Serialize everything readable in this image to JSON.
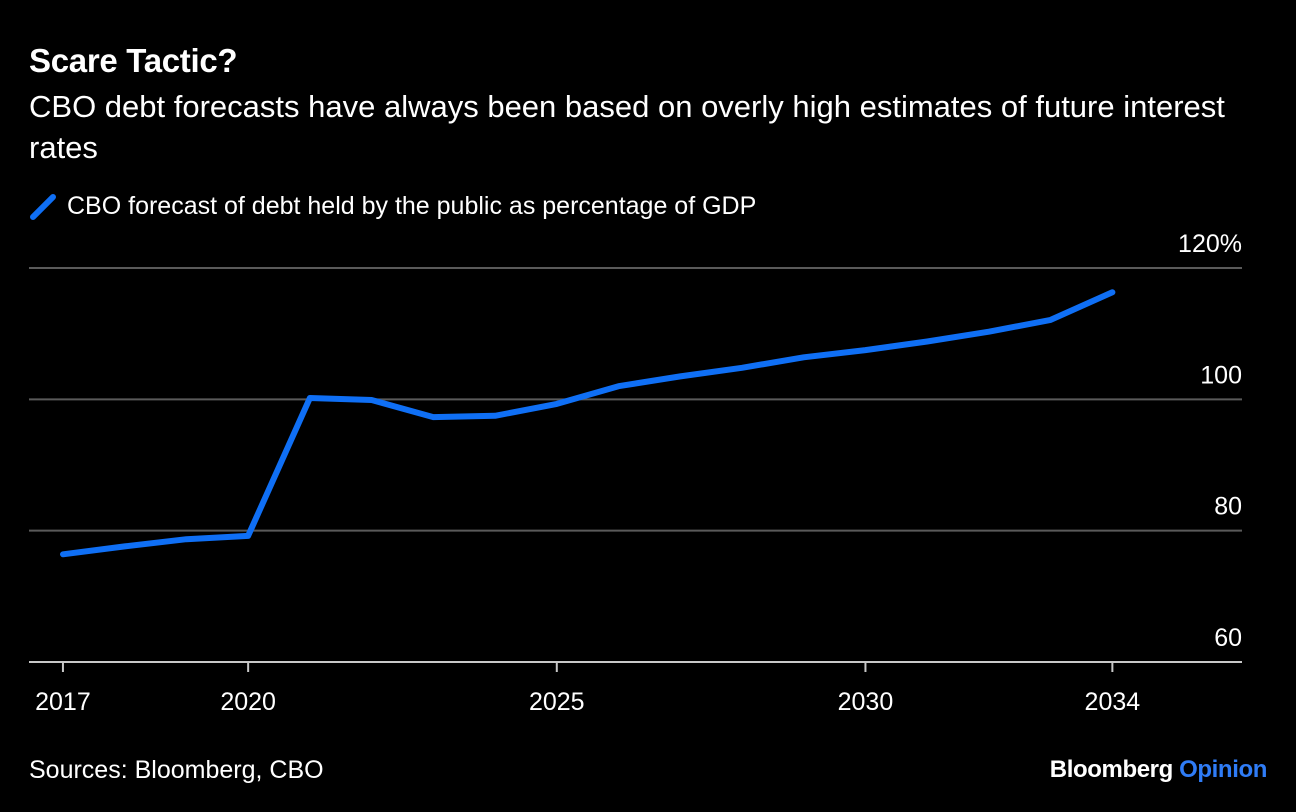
{
  "header": {
    "title": "Scare Tactic?",
    "subtitle": "CBO debt forecasts have always been based on overly high estimates of future interest rates"
  },
  "footer": {
    "source": "Sources: Bloomberg, CBO",
    "brand_main": "Bloomberg",
    "brand_accent": "Opinion"
  },
  "colors": {
    "background": "#000000",
    "series": "#0f6ff5",
    "grid": "#5a5a5a",
    "axis": "#c8c8c8",
    "text": "#ffffff",
    "brand_accent": "#2f7cf6"
  },
  "chart_data": {
    "type": "line",
    "title": "Scare Tactic?",
    "subtitle": "CBO debt forecasts have always been based on overly high estimates of future interest rates",
    "xlabel": "",
    "ylabel": "",
    "xlim": [
      2016.45,
      2036.1
    ],
    "ylim": [
      60,
      120
    ],
    "x_ticks": [
      2017,
      2020,
      2025,
      2030,
      2034
    ],
    "x_tick_labels": [
      "2017",
      "2020",
      "2025",
      "2030",
      "2034"
    ],
    "y_ticks": [
      60,
      80,
      100,
      120
    ],
    "y_tick_labels": [
      "60",
      "80",
      "100",
      "120%"
    ],
    "y_axis_side": "right",
    "grid": true,
    "legend": {
      "placement": "top-left"
    },
    "series": [
      {
        "name": "CBO forecast of debt held by the public as percentage of GDP",
        "x": [
          2017,
          2018,
          2019,
          2020,
          2021,
          2022,
          2023,
          2024,
          2025,
          2026,
          2027,
          2028,
          2029,
          2030,
          2031,
          2032,
          2033,
          2034
        ],
        "values": [
          76.4,
          77.6,
          78.7,
          79.2,
          100.2,
          99.9,
          97.3,
          97.5,
          99.3,
          102.0,
          103.5,
          104.8,
          106.4,
          107.5,
          108.8,
          110.3,
          112.1,
          116.3
        ]
      }
    ]
  }
}
